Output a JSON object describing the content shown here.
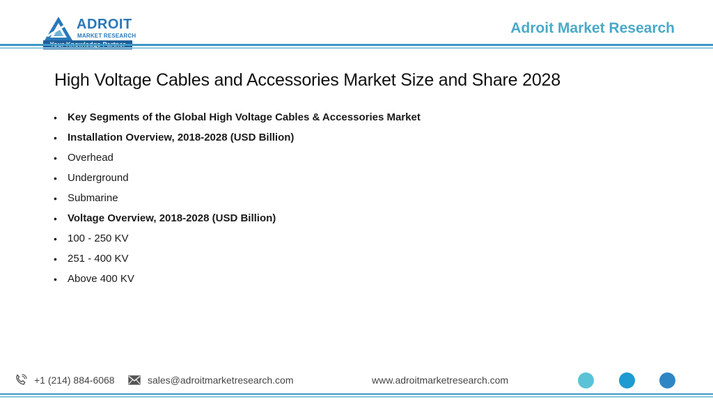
{
  "header": {
    "logo": {
      "name": "ADROIT",
      "subtitle": "MARKET RESEARCH",
      "tagline": "Your Knowledge Partner"
    },
    "brand_title": "Adroit Market Research"
  },
  "content": {
    "title": "High Voltage Cables and Accessories Market Size and Share 2028",
    "bullets": [
      {
        "text": "Key Segments of the Global High Voltage Cables & Accessories Market",
        "bold": true
      },
      {
        "text": "Installation Overview, 2018-2028 (USD Billion)",
        "bold": true
      },
      {
        "text": "Overhead",
        "bold": false
      },
      {
        "text": "Underground",
        "bold": false
      },
      {
        "text": "Submarine",
        "bold": false
      },
      {
        "text": "Voltage Overview, 2018-2028 (USD Billion)",
        "bold": true
      },
      {
        "text": "100 - 250 KV",
        "bold": false
      },
      {
        "text": "251 - 400 KV",
        "bold": false
      },
      {
        "text": "Above 400 KV",
        "bold": false
      }
    ]
  },
  "footer": {
    "phone": "+1 (214) 884-6068",
    "email": "sales@adroitmarketresearch.com",
    "website": "www.adroitmarketresearch.com",
    "phone_icon": "phone-icon",
    "mail_icon": "mail-icon"
  },
  "colors": {
    "brand_blue": "#2a78b8",
    "title_teal": "#4aa9c8",
    "rule_blue": "#3e97c4",
    "rule_light": "#8fc7df",
    "circle_1": "#5bc3d6",
    "circle_2": "#1e9bd0",
    "circle_3": "#2f86c4"
  }
}
